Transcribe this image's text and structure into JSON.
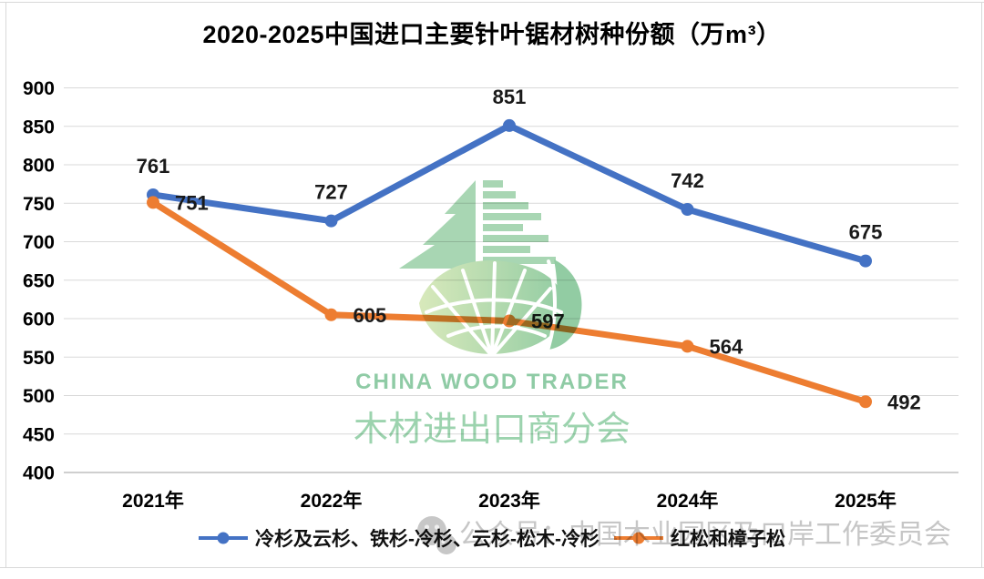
{
  "title": "2020-2025中国进口主要针叶锯材树种份额（万m³）",
  "chart_data": {
    "type": "line",
    "categories": [
      "2021年",
      "2022年",
      "2023年",
      "2024年",
      "2025年"
    ],
    "series": [
      {
        "name": "冷杉及云杉、铁杉-冷杉、云杉-松木-冷杉",
        "values": [
          761,
          727,
          851,
          742,
          675
        ],
        "color": "#4472C4",
        "label_position": "above"
      },
      {
        "name": "红松和樟子松",
        "values": [
          751,
          605,
          597,
          564,
          492
        ],
        "color": "#ED7D31",
        "label_position": "right"
      }
    ],
    "ylim": [
      400,
      900
    ],
    "yticks": [
      900,
      850,
      800,
      750,
      700,
      650,
      600,
      550,
      500,
      450,
      400
    ],
    "grid": true,
    "gridline_color": "#d9d9d9",
    "axis_line_color": "#bfbfbf",
    "legend_position": "bottom",
    "xlabel": "",
    "ylabel": ""
  },
  "watermark": {
    "brand_en": "CHINA WOOD TRADER",
    "brand_cn": "木材进出口商分会",
    "logo_icon": "pine-tree-globe-leaf-logo",
    "logo_green": "#a8d6b3",
    "leaf_green_light": "#d8e9bb",
    "leaf_green_dark": "#92cca3",
    "footer_icon": "wechat-official-account-icon",
    "footer_text": "公众号：中国木业园区及口岸工作委员会",
    "footer_color": "#c6c6c6"
  }
}
